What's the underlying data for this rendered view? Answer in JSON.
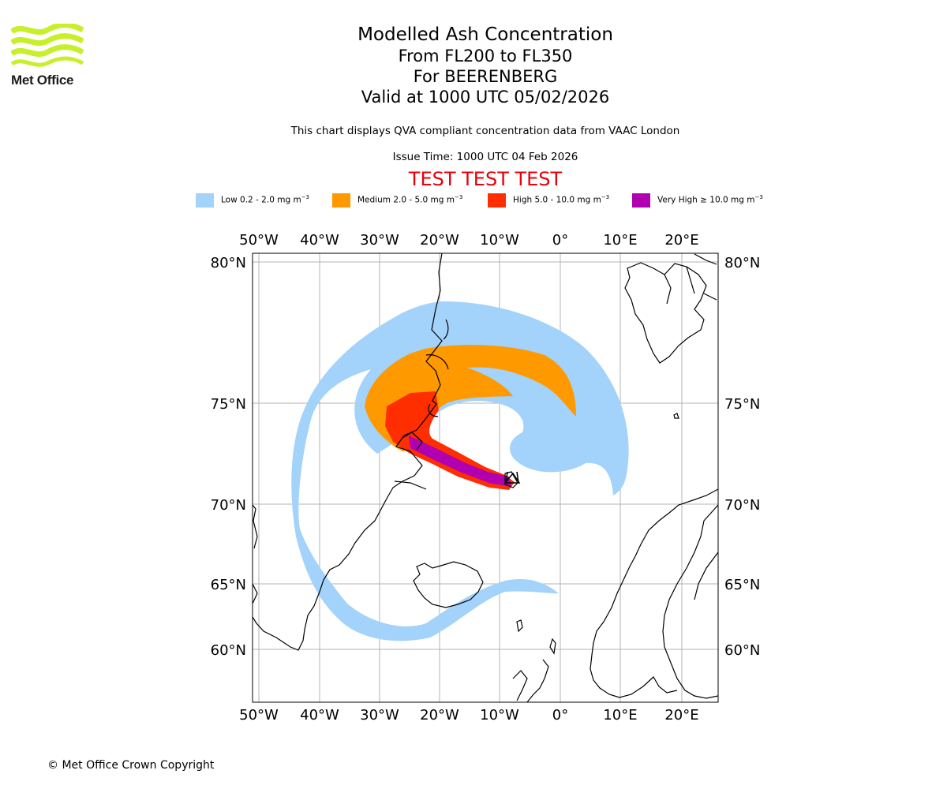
{
  "logo": {
    "name": "Met Office",
    "color": "#c8f02a"
  },
  "title": {
    "line1": "Modelled Ash Concentration",
    "line2": "From FL200 to FL350",
    "line3": "For BEERENBERG",
    "line4": "Valid at 1000 UTC 05/02/2026"
  },
  "description": "This chart displays QVA compliant concentration data from VAAC London",
  "issue_time": "Issue Time: 1000 UTC 04 Feb 2026",
  "banner": "TEST TEST TEST",
  "legend": [
    {
      "label": "Low 0.2 - 2.0 mg m",
      "sup": "−3",
      "color": "#a3d2fa"
    },
    {
      "label": "Medium 2.0 - 5.0 mg m",
      "sup": "−3",
      "color": "#ff9900"
    },
    {
      "label": "High 5.0 - 10.0 mg m",
      "sup": "−3",
      "color": "#ff2e00"
    },
    {
      "label": "Very High  ≥  10.0 mg m",
      "sup": "−3",
      "color": "#b000b0"
    }
  ],
  "map": {
    "lon_ticks": [
      "50°W",
      "40°W",
      "30°W",
      "20°W",
      "10°W",
      "0°",
      "10°E",
      "20°E"
    ],
    "lat_ticks": [
      "80°N",
      "75°N",
      "70°N",
      "65°N",
      "60°N"
    ],
    "volcano": "BEERENBERG"
  },
  "copyright": "© Met Office Crown Copyright"
}
